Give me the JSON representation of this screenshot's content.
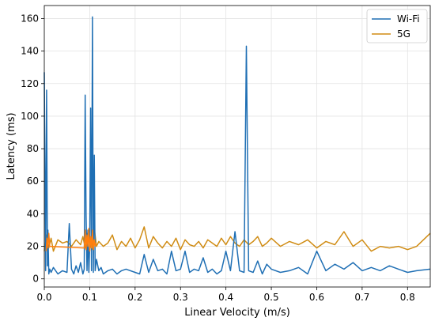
{
  "chart_data": {
    "type": "line",
    "title": "",
    "xlabel": "Linear Velocity (m/s)",
    "ylabel": "Latency (ms)",
    "xlim": [
      0.0,
      0.85
    ],
    "ylim": [
      -5,
      168
    ],
    "xticks": [
      0.0,
      0.1,
      0.2,
      0.3,
      0.4,
      0.5,
      0.6,
      0.7,
      0.8
    ],
    "xtick_labels": [
      "0.0",
      "0.1",
      "0.2",
      "0.3",
      "0.4",
      "0.5",
      "0.6",
      "0.7",
      "0.8"
    ],
    "yticks": [
      0,
      20,
      40,
      60,
      80,
      100,
      120,
      140,
      160
    ],
    "ytick_labels": [
      "0",
      "20",
      "40",
      "60",
      "80",
      "100",
      "120",
      "140",
      "160"
    ],
    "grid": true,
    "legend_position": "top-right",
    "series": [
      {
        "name": "Wi-Fi",
        "color": "#1f6fb4",
        "x": [
          0.0,
          0.003,
          0.005,
          0.007,
          0.008,
          0.01,
          0.012,
          0.015,
          0.02,
          0.03,
          0.04,
          0.05,
          0.055,
          0.06,
          0.065,
          0.07,
          0.075,
          0.08,
          0.085,
          0.088,
          0.09,
          0.092,
          0.094,
          0.096,
          0.098,
          0.1,
          0.102,
          0.104,
          0.106,
          0.108,
          0.11,
          0.112,
          0.115,
          0.12,
          0.125,
          0.13,
          0.14,
          0.15,
          0.16,
          0.17,
          0.18,
          0.2,
          0.21,
          0.22,
          0.23,
          0.24,
          0.25,
          0.26,
          0.27,
          0.28,
          0.29,
          0.3,
          0.31,
          0.32,
          0.33,
          0.34,
          0.35,
          0.36,
          0.37,
          0.38,
          0.39,
          0.4,
          0.41,
          0.42,
          0.43,
          0.44,
          0.445,
          0.45,
          0.46,
          0.47,
          0.48,
          0.49,
          0.5,
          0.52,
          0.54,
          0.56,
          0.58,
          0.6,
          0.62,
          0.64,
          0.66,
          0.68,
          0.7,
          0.72,
          0.74,
          0.76,
          0.78,
          0.8,
          0.82,
          0.85
        ],
        "values": [
          127,
          5,
          116,
          8,
          30,
          3,
          6,
          4,
          7,
          3,
          5,
          4,
          34,
          6,
          3,
          8,
          4,
          10,
          3,
          6,
          113,
          40,
          5,
          30,
          4,
          20,
          105,
          5,
          161,
          4,
          76,
          5,
          12,
          5,
          7,
          3,
          5,
          6,
          3,
          5,
          6,
          4,
          3,
          15,
          4,
          12,
          5,
          6,
          3,
          17,
          5,
          6,
          17,
          4,
          6,
          5,
          13,
          4,
          6,
          3,
          5,
          17,
          5,
          29,
          5,
          4,
          143,
          5,
          4,
          11,
          3,
          9,
          6,
          4,
          5,
          7,
          3,
          17,
          5,
          9,
          6,
          10,
          5,
          7,
          5,
          8,
          6,
          4,
          5,
          6
        ]
      },
      {
        "name": "5G",
        "color": "#d08c14",
        "x": [
          0.0,
          0.005,
          0.01,
          0.015,
          0.02,
          0.03,
          0.04,
          0.05,
          0.06,
          0.07,
          0.08,
          0.085,
          0.09,
          0.095,
          0.1,
          0.105,
          0.11,
          0.115,
          0.12,
          0.13,
          0.14,
          0.15,
          0.16,
          0.17,
          0.18,
          0.19,
          0.2,
          0.21,
          0.22,
          0.23,
          0.24,
          0.25,
          0.26,
          0.27,
          0.28,
          0.29,
          0.3,
          0.31,
          0.32,
          0.33,
          0.34,
          0.35,
          0.36,
          0.37,
          0.38,
          0.39,
          0.4,
          0.41,
          0.42,
          0.43,
          0.44,
          0.45,
          0.46,
          0.47,
          0.48,
          0.49,
          0.5,
          0.52,
          0.54,
          0.56,
          0.58,
          0.6,
          0.62,
          0.64,
          0.66,
          0.68,
          0.7,
          0.72,
          0.74,
          0.76,
          0.78,
          0.8,
          0.82,
          0.85
        ],
        "values": [
          17,
          27,
          19,
          25,
          17,
          24,
          22,
          23,
          20,
          24,
          21,
          26,
          19,
          28,
          22,
          18,
          31,
          20,
          23,
          20,
          22,
          27,
          18,
          23,
          20,
          25,
          19,
          24,
          32,
          19,
          26,
          22,
          19,
          23,
          20,
          25,
          18,
          24,
          21,
          20,
          23,
          19,
          24,
          22,
          20,
          25,
          21,
          26,
          22,
          20,
          24,
          21,
          23,
          26,
          20,
          22,
          25,
          20,
          23,
          21,
          24,
          19,
          23,
          21,
          29,
          20,
          24,
          17,
          20,
          19,
          20,
          18,
          20,
          28
        ]
      },
      {
        "name": "",
        "color": "#ff7f0e",
        "x": [
          0.004,
          0.006,
          0.008,
          0.01,
          0.012,
          0.088,
          0.09,
          0.092,
          0.094,
          0.096,
          0.098,
          0.1,
          0.102,
          0.104,
          0.106,
          0.108,
          0.11,
          0.112,
          0.114
        ],
        "values": [
          17,
          25,
          19,
          28,
          20,
          19,
          30,
          18,
          27,
          20,
          31,
          17,
          26,
          19,
          30,
          18,
          24,
          20,
          22
        ]
      }
    ]
  }
}
